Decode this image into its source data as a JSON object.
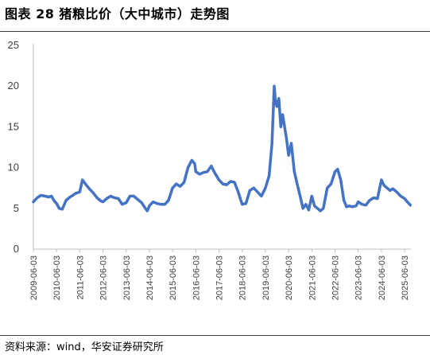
{
  "header": {
    "title": "图表 28 猪粮比价（大中城市）走势图"
  },
  "footer": {
    "source": "资料来源：wind，华安证券研究所"
  },
  "chart_data": {
    "type": "line",
    "title": "图表 28 猪粮比价（大中城市）走势图",
    "xlabel": "",
    "ylabel": "",
    "ylim": [
      0,
      25
    ],
    "yticks": [
      0,
      5,
      10,
      15,
      20,
      25
    ],
    "grid": false,
    "legend": "none",
    "line_color": "#4472c4",
    "x_ticks": [
      "2009-06-03",
      "2010-06-03",
      "2011-06-03",
      "2012-06-03",
      "2013-06-03",
      "2014-06-03",
      "2015-06-03",
      "2016-06-03",
      "2017-06-03",
      "2018-06-03",
      "2019-06-03",
      "2020-06-03",
      "2021-06-03",
      "2022-06-03",
      "2023-06-03",
      "2024-06-03",
      "2025-06-03"
    ],
    "series": [
      {
        "x": [
          "2009-06-03",
          "2009-08-01",
          "2009-10-01",
          "2009-12-01",
          "2010-02-01",
          "2010-03-15",
          "2010-04-20",
          "2010-06-03",
          "2010-07-15",
          "2010-09-01",
          "2010-11-01",
          "2011-01-01",
          "2011-02-15",
          "2011-03-20",
          "2011-04-20",
          "2011-06-03",
          "2011-07-15",
          "2011-09-01",
          "2011-11-01",
          "2012-01-01",
          "2012-03-01",
          "2012-05-01",
          "2012-06-03",
          "2012-08-01",
          "2012-10-01",
          "2012-12-01",
          "2013-02-01",
          "2013-04-01",
          "2013-06-03",
          "2013-08-01",
          "2013-10-01",
          "2013-12-01",
          "2014-02-01",
          "2014-04-01",
          "2014-05-01",
          "2014-06-03",
          "2014-08-01",
          "2014-10-01",
          "2014-12-01",
          "2015-02-01",
          "2015-04-01",
          "2015-06-03",
          "2015-08-01",
          "2015-10-01",
          "2015-12-01",
          "2016-02-01",
          "2016-04-01",
          "2016-05-15",
          "2016-06-03",
          "2016-08-01",
          "2016-10-01",
          "2016-12-01",
          "2017-02-01",
          "2017-04-01",
          "2017-06-03",
          "2017-08-01",
          "2017-10-01",
          "2017-12-01",
          "2018-02-01",
          "2018-04-01",
          "2018-06-03",
          "2018-08-01",
          "2018-10-01",
          "2018-12-01",
          "2019-02-01",
          "2019-04-01",
          "2019-06-03",
          "2019-08-01",
          "2019-09-15",
          "2019-10-20",
          "2019-11-10",
          "2019-12-01",
          "2020-01-01",
          "2020-02-01",
          "2020-03-01",
          "2020-04-01",
          "2020-05-01",
          "2020-06-03",
          "2020-07-15",
          "2020-09-01",
          "2020-10-15",
          "2020-12-01",
          "2021-01-15",
          "2021-03-01",
          "2021-04-15",
          "2021-06-03",
          "2021-07-15",
          "2021-09-01",
          "2021-10-15",
          "2021-12-01",
          "2022-02-01",
          "2022-04-01",
          "2022-06-03",
          "2022-07-15",
          "2022-09-01",
          "2022-10-20",
          "2022-12-01",
          "2023-01-15",
          "2023-03-01",
          "2023-05-01",
          "2023-06-03",
          "2023-08-01",
          "2023-10-01",
          "2023-12-01",
          "2024-02-01",
          "2024-04-01",
          "2024-06-03",
          "2024-07-15",
          "2024-09-01",
          "2024-10-15",
          "2024-12-01",
          "2025-02-01",
          "2025-04-01",
          "2025-06-03",
          "2025-07-15",
          "2025-09-01"
        ],
        "values": [
          5.8,
          6.3,
          6.6,
          6.5,
          6.4,
          6.5,
          6.0,
          5.6,
          5.0,
          4.9,
          6.0,
          6.4,
          6.6,
          6.8,
          6.9,
          7.0,
          8.5,
          8.0,
          7.4,
          6.9,
          6.3,
          5.9,
          5.8,
          6.2,
          6.5,
          6.3,
          6.2,
          5.5,
          5.7,
          6.5,
          6.5,
          6.1,
          5.7,
          5.0,
          4.7,
          5.3,
          5.8,
          5.6,
          5.5,
          5.5,
          6.0,
          7.5,
          8.0,
          7.7,
          8.2,
          10.0,
          10.9,
          10.5,
          9.5,
          9.2,
          9.4,
          9.5,
          10.2,
          9.3,
          8.5,
          8.0,
          7.9,
          8.3,
          8.2,
          7.0,
          5.5,
          5.6,
          7.2,
          7.5,
          7.0,
          6.5,
          7.5,
          9.0,
          13.0,
          20.0,
          18.0,
          17.5,
          18.5,
          15.0,
          16.5,
          15.0,
          13.5,
          11.5,
          13.0,
          9.5,
          8.0,
          6.5,
          5.0,
          5.5,
          4.8,
          6.5,
          5.3,
          5.0,
          4.7,
          5.0,
          7.5,
          8.0,
          9.5,
          9.8,
          8.5,
          6.0,
          5.2,
          5.3,
          5.2,
          5.3,
          5.8,
          5.5,
          5.4,
          6.0,
          6.3,
          6.2,
          8.5,
          7.8,
          7.5,
          7.2,
          7.4,
          7.0,
          6.5,
          6.2,
          5.8,
          5.4
        ]
      }
    ]
  }
}
